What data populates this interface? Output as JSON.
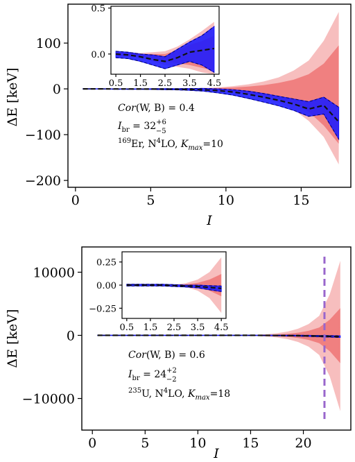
{
  "chart_data": [
    {
      "type": "line",
      "panel": "top",
      "xlabel": "I",
      "ylabel": "ΔE [keV]",
      "xlim": [
        -0.5,
        18.3
      ],
      "ylim": [
        -215,
        185
      ],
      "xticks": [
        0,
        5,
        10,
        15
      ],
      "yticks": [
        -200,
        -100,
        0,
        100
      ],
      "x": [
        0.5,
        1.5,
        2.5,
        3.5,
        4.5,
        5.5,
        6.5,
        7.5,
        8.5,
        9.5,
        10.5,
        11.5,
        12.5,
        13.5,
        14.5,
        15.5,
        16.5,
        17.5
      ],
      "series": [
        {
          "role": "model-uncertainty-outer",
          "color": "#f4a3a3",
          "upper": [
            0,
            0,
            0,
            0,
            0.1,
            0.3,
            0.5,
            1,
            2,
            3,
            6,
            10,
            16,
            25,
            40,
            62,
            105,
            168
          ],
          "lower": [
            0,
            0,
            0,
            0,
            -0.1,
            -0.3,
            -0.5,
            -1,
            -2,
            -4,
            -7,
            -12,
            -20,
            -30,
            -45,
            -70,
            -105,
            -165
          ]
        },
        {
          "role": "model-uncertainty-inner",
          "color": "#ee6b6b",
          "upper": [
            0,
            0,
            0,
            0,
            0.05,
            0.2,
            0.3,
            0.6,
            1,
            2,
            3,
            5,
            8,
            13,
            20,
            32,
            55,
            95
          ],
          "lower": [
            0,
            0,
            0,
            0,
            -0.05,
            -0.2,
            -0.4,
            -0.8,
            -1.5,
            -3,
            -5,
            -9,
            -14,
            -22,
            -32,
            -50,
            -80,
            -120
          ]
        },
        {
          "role": "parametric-band",
          "color": "#1a1aff",
          "upper": [
            0.5,
            0.3,
            0.2,
            0.1,
            0.2,
            0.4,
            0.5,
            0.8,
            1,
            0,
            -2,
            -5,
            -10,
            -16,
            -22,
            -28,
            -18,
            -40
          ],
          "lower": [
            -0.5,
            -0.5,
            -0.8,
            -1,
            -1,
            -1.5,
            -2,
            -3,
            -5,
            -9,
            -14,
            -21,
            -29,
            -37,
            -47,
            -60,
            -55,
            -110
          ]
        },
        {
          "role": "mean",
          "color": "#111111",
          "values": [
            0,
            0,
            -0.1,
            -0.2,
            -0.3,
            -0.5,
            -0.8,
            -1.2,
            -2,
            -4,
            -7,
            -12,
            -18,
            -25,
            -33,
            -44,
            -36,
            -72
          ]
        }
      ],
      "annotations": [
        "Cor(W, B) = 0.4",
        "I_br = 32 (+6/−5)",
        "169Er, N4LO, K_max=10"
      ],
      "inset": {
        "xlim": [
          0.3,
          4.7
        ],
        "ylim": [
          -0.22,
          0.52
        ],
        "xticks": [
          0.5,
          1.5,
          2.5,
          3.5,
          4.5
        ],
        "xtick_labels": [
          "0.5",
          "1.5",
          "2.5",
          "3.5",
          "4.5"
        ],
        "yticks": [
          0.0,
          0.5
        ],
        "ytick_labels": [
          "0.0",
          "0.5"
        ],
        "x": [
          0.5,
          1.0,
          1.5,
          2.0,
          2.5,
          3.0,
          3.5,
          4.0,
          4.5
        ],
        "series": [
          {
            "role": "model-uncertainty-outer",
            "color": "#f4a3a3",
            "upper": [
              0.03,
              0.02,
              0.01,
              0.02,
              0.03,
              0.08,
              0.16,
              0.25,
              0.35
            ],
            "lower": [
              -0.03,
              -0.03,
              -0.04,
              -0.08,
              -0.12,
              -0.14,
              -0.16,
              -0.2,
              -0.22
            ]
          },
          {
            "role": "model-uncertainty-inner",
            "color": "#ee6b6b",
            "upper": [
              0.02,
              0.01,
              0.0,
              0.0,
              0.0,
              0.04,
              0.1,
              0.14,
              0.2
            ],
            "lower": [
              -0.02,
              -0.02,
              -0.03,
              -0.05,
              -0.08,
              -0.1,
              -0.12,
              -0.15,
              -0.18
            ]
          },
          {
            "role": "parametric-band",
            "color": "#1a1aff",
            "upper": [
              0.03,
              0.02,
              0.0,
              -0.01,
              -0.03,
              0.05,
              0.13,
              0.2,
              0.3
            ],
            "lower": [
              -0.04,
              -0.05,
              -0.08,
              -0.12,
              -0.16,
              -0.12,
              -0.08,
              -0.12,
              -0.2
            ]
          },
          {
            "role": "mean",
            "color": "#111111",
            "values": [
              0.0,
              -0.01,
              -0.03,
              -0.06,
              -0.08,
              -0.04,
              0.02,
              0.04,
              0.06
            ]
          }
        ]
      }
    },
    {
      "type": "line",
      "panel": "bottom",
      "xlabel": "I",
      "ylabel": "ΔE [keV]",
      "xlim": [
        -1.0,
        24.5
      ],
      "ylim": [
        -15000,
        14000
      ],
      "xticks": [
        0,
        5,
        10,
        15,
        20
      ],
      "yticks": [
        -10000,
        0,
        10000
      ],
      "x": [
        0.5,
        1.5,
        2.5,
        3.5,
        4.5,
        5.5,
        6.5,
        7.5,
        8.5,
        9.5,
        10.5,
        11.5,
        12.5,
        13.5,
        14.5,
        15.5,
        16.5,
        17.5,
        18.5,
        19.5,
        20.5,
        21.5,
        22.5,
        23.5
      ],
      "series": [
        {
          "role": "model-uncertainty-outer",
          "color": "#f4a3a3",
          "upper": [
            0,
            0,
            0,
            0,
            0,
            0,
            0,
            0,
            0,
            0,
            0,
            0,
            5,
            15,
            40,
            90,
            180,
            330,
            600,
            1050,
            1800,
            3100,
            6500,
            11800
          ],
          "lower": [
            0,
            0,
            0,
            0,
            0,
            0,
            0,
            0,
            0,
            0,
            0,
            0,
            -5,
            -15,
            -40,
            -90,
            -180,
            -330,
            -600,
            -1050,
            -1800,
            -3100,
            -6500,
            -12000
          ]
        },
        {
          "role": "model-uncertainty-inner",
          "color": "#ee6b6b",
          "upper": [
            0,
            0,
            0,
            0,
            0,
            0,
            0,
            0,
            0,
            0,
            0,
            0,
            2,
            6,
            16,
            35,
            70,
            130,
            240,
            420,
            720,
            1250,
            2500,
            4300
          ],
          "lower": [
            0,
            0,
            0,
            0,
            0,
            0,
            0,
            0,
            0,
            0,
            0,
            0,
            -2,
            -6,
            -16,
            -35,
            -70,
            -130,
            -240,
            -420,
            -720,
            -1250,
            -2500,
            -4400
          ]
        },
        {
          "role": "parametric-band",
          "color": "#1a1aff",
          "upper": [
            40,
            40,
            40,
            40,
            40,
            40,
            40,
            40,
            40,
            40,
            40,
            40,
            40,
            40,
            40,
            40,
            40,
            40,
            30,
            20,
            0,
            -20,
            -40,
            -60
          ],
          "lower": [
            -40,
            -40,
            -40,
            -40,
            -40,
            -40,
            -40,
            -40,
            -40,
            -40,
            -40,
            -40,
            -40,
            -40,
            -40,
            -40,
            -50,
            -70,
            -100,
            -130,
            -170,
            -220,
            -280,
            -340
          ]
        },
        {
          "role": "mean",
          "color": "#111111",
          "values": [
            0,
            0,
            0,
            0,
            0,
            0,
            0,
            0,
            0,
            0,
            0,
            0,
            0,
            0,
            0,
            0,
            -5,
            -15,
            -35,
            -55,
            -85,
            -120,
            -160,
            -200
          ]
        }
      ],
      "vline": {
        "x": 22,
        "color": "#9966cc",
        "style": "dashed"
      },
      "annotations": [
        "Cor(W, B) = 0.6",
        "I_br = 24 (+2/−2)",
        "235U, N4LO, K_max=18"
      ],
      "inset": {
        "xlim": [
          0.3,
          4.7
        ],
        "ylim": [
          -0.36,
          0.36
        ],
        "xticks": [
          0.5,
          1.5,
          2.5,
          3.5,
          4.5
        ],
        "xtick_labels": [
          "0.5",
          "1.5",
          "2.5",
          "3.5",
          "4.5"
        ],
        "yticks": [
          -0.25,
          0.0,
          0.25
        ],
        "ytick_labels": [
          "−0.25",
          "0.00",
          "0.25"
        ],
        "x": [
          0.5,
          1.0,
          1.5,
          2.0,
          2.5,
          3.0,
          3.5,
          4.0,
          4.5
        ],
        "series": [
          {
            "role": "model-uncertainty-outer",
            "color": "#f4a3a3",
            "upper": [
              0.0,
              0.0,
              0.0,
              0.0,
              0.005,
              0.02,
              0.06,
              0.14,
              0.3
            ],
            "lower": [
              0.0,
              0.0,
              0.0,
              0.0,
              -0.005,
              -0.02,
              -0.06,
              -0.14,
              -0.3
            ]
          },
          {
            "role": "model-uncertainty-inner",
            "color": "#ee6b6b",
            "upper": [
              0.0,
              0.0,
              0.0,
              0.0,
              0.002,
              0.008,
              0.025,
              0.06,
              0.12
            ],
            "lower": [
              0.0,
              0.0,
              0.0,
              0.0,
              -0.002,
              -0.008,
              -0.025,
              -0.06,
              -0.12
            ]
          },
          {
            "role": "parametric-band",
            "color": "#1a1aff",
            "upper": [
              0.01,
              0.01,
              0.01,
              0.01,
              0.005,
              0.0,
              0.0,
              -0.005,
              -0.01
            ],
            "lower": [
              -0.01,
              -0.01,
              -0.01,
              -0.01,
              -0.015,
              -0.02,
              -0.03,
              -0.05,
              -0.07
            ]
          },
          {
            "role": "mean",
            "color": "#111111",
            "values": [
              0.0,
              0.0,
              0.0,
              0.0,
              -0.005,
              -0.01,
              -0.015,
              -0.025,
              -0.035
            ]
          }
        ]
      }
    }
  ],
  "labels": {
    "top": {
      "ylabel": "ΔE [keV]",
      "xlabel": "I",
      "ann1_a": "Cor",
      "ann1_b": "(W, B) = 0.4",
      "ann2_a": "I",
      "ann2_sub": "br",
      "ann2_b": " = 32",
      "ann2_sup": "+6",
      "ann2_inf": "−5",
      "ann3_pre": "169",
      "ann3_a": "Er, N",
      "ann3_sup": "4",
      "ann3_b": "LO, ",
      "ann3_k": "K",
      "ann3_ksub": "max",
      "ann3_c": "=10"
    },
    "bottom": {
      "ylabel": "ΔE [keV]",
      "xlabel": "I",
      "ann1_a": "Cor",
      "ann1_b": "(W, B) = 0.6",
      "ann2_a": "I",
      "ann2_sub": "br",
      "ann2_b": " = 24",
      "ann2_sup": "+2",
      "ann2_inf": "−2",
      "ann3_pre": "235",
      "ann3_a": "U, N",
      "ann3_sup": "4",
      "ann3_b": "LO, ",
      "ann3_k": "K",
      "ann3_ksub": "max",
      "ann3_c": "=18"
    }
  }
}
